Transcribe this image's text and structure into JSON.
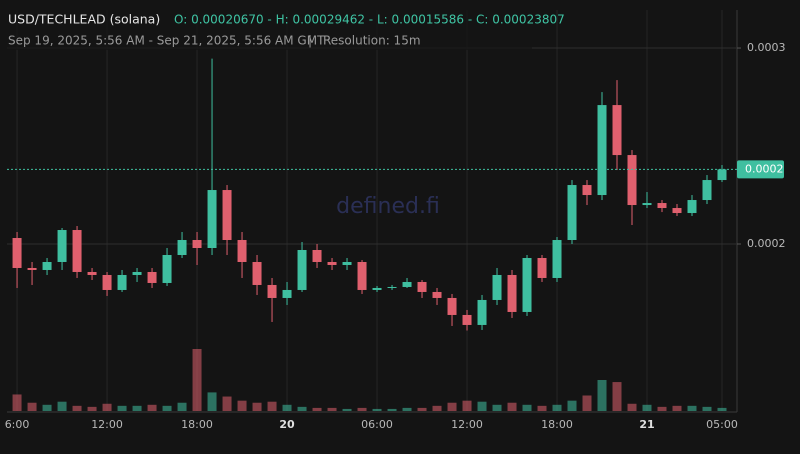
{
  "chart_data": {
    "type": "candlestick",
    "title": "USD/TECHLEAD (solana)",
    "ohlc_text": "O: 0.00020670 - H: 0.00029462 - L: 0.00015586 - C: 0.00023807",
    "subtitle": "Sep 19, 2025, 5:56 AM - Sep 21, 2025, 5:56 AM GMT",
    "separator": "|",
    "resolution": "Resolution: 15m",
    "watermark": "defined.fi",
    "up_color": "#3fbfa0",
    "down_color": "#e0606e",
    "grid": true,
    "xlim": [
      -0.67,
      48
    ],
    "xticks": [
      {
        "value": 0,
        "label": "6:00"
      },
      {
        "value": 6,
        "label": "12:00"
      },
      {
        "value": 12,
        "label": "18:00"
      },
      {
        "value": 18,
        "label": "20"
      },
      {
        "value": 24,
        "label": "06:00"
      },
      {
        "value": 30,
        "label": "12:00"
      },
      {
        "value": 36,
        "label": "18:00"
      },
      {
        "value": 42,
        "label": "21"
      },
      {
        "value": 47,
        "label": "05:00"
      }
    ],
    "ylim": [
      0.0001153,
      0.0003194
    ],
    "yticks": [
      0.0003,
      0.0002
    ],
    "last_price": {
      "value": 0.00023807,
      "label": "0.0002"
    },
    "x": [
      0,
      1,
      2,
      3,
      4,
      5,
      6,
      7,
      8,
      9,
      10,
      11,
      12,
      13,
      14,
      15,
      16,
      17,
      18,
      19,
      20,
      21,
      22,
      23,
      24,
      25,
      26,
      27,
      28,
      29,
      30,
      31,
      32,
      33,
      34,
      35,
      36,
      37,
      38,
      39,
      40,
      41,
      42,
      43,
      44,
      45,
      46,
      47
    ],
    "open": [
      0.00020306,
      0.00018776,
      0.00018674,
      0.00019082,
      0.00020714,
      0.00018572,
      0.00018419,
      0.00017654,
      0.00018419,
      0.00018572,
      0.00018011,
      0.00019439,
      0.00020204,
      0.00019796,
      0.00022754,
      0.00020204,
      0.00019082,
      0.00017909,
      0.00017246,
      0.00017654,
      0.00019694,
      0.00019082,
      0.00018929,
      0.00019082,
      0.00017654,
      0.00017756,
      0.00017807,
      0.00018062,
      0.00017552,
      0.00017246,
      0.00016379,
      0.00015869,
      0.00017144,
      0.00018419,
      0.00016532,
      0.00019286,
      0.00018266,
      0.00020204,
      0.00023009,
      0.00022499,
      0.00027089,
      0.00024539,
      0.00021989,
      0.00022091,
      0.00021836,
      0.00021581,
      0.00022244,
      0.00023264
    ],
    "high": [
      0.00020612,
      0.00019082,
      0.00019286,
      0.00020816,
      0.00020918,
      0.00018776,
      0.00018572,
      0.00018674,
      0.00018776,
      0.00018776,
      0.00019796,
      0.00020612,
      0.00020612,
      0.00029462,
      0.00023009,
      0.00020612,
      0.00019439,
      0.00018266,
      0.00018062,
      0.00020102,
      0.0002,
      0.00019286,
      0.00019286,
      0.00019184,
      0.00017858,
      0.00017909,
      0.00018266,
      0.00018164,
      0.00017756,
      0.0001745,
      0.00016634,
      0.00017399,
      0.00018776,
      0.00018674,
      0.00019439,
      0.00019439,
      0.00020357,
      0.00023264,
      0.00023264,
      0.00027752,
      0.00028364,
      0.00024794,
      0.00022652,
      0.00022244,
      0.0002204,
      0.00022499,
      0.00023519,
      0.00024029
    ],
    "low": [
      0.00017756,
      0.00017909,
      0.00018419,
      0.00018674,
      0.00018266,
      0.00018164,
      0.00017348,
      0.00017552,
      0.00018062,
      0.00017756,
      0.00017858,
      0.00019286,
      0.00018929,
      0.00019439,
      0.00019439,
      0.00018266,
      0.00017399,
      0.00016022,
      0.00016889,
      0.00017552,
      0.00018776,
      0.00018674,
      0.00018674,
      0.0001745,
      0.00017552,
      0.00017654,
      0.00017756,
      0.00017246,
      0.00016889,
      0.00015818,
      0.00015586,
      0.00015614,
      0.00016889,
      0.00016226,
      0.00016328,
      0.00018062,
      0.00018062,
      0.0002,
      0.00021989,
      0.00022244,
      0.00023774,
      0.00020969,
      0.00021836,
      0.0002163,
      0.00021428,
      0.00021428,
      0.0002204,
      0.00023162
    ],
    "close": [
      0.00018776,
      0.00018674,
      0.00019082,
      0.00020714,
      0.00018572,
      0.00018419,
      0.00017654,
      0.00018419,
      0.00018572,
      0.00018011,
      0.00019439,
      0.00020204,
      0.00019796,
      0.00022754,
      0.00020204,
      0.00019082,
      0.00017909,
      0.00017246,
      0.00017654,
      0.00019694,
      0.00019082,
      0.00018929,
      0.00019082,
      0.00017654,
      0.00017756,
      0.00017807,
      0.00018062,
      0.00017552,
      0.00017246,
      0.00016379,
      0.00015869,
      0.00017144,
      0.00018419,
      0.00016532,
      0.00019286,
      0.00018266,
      0.00020204,
      0.00023009,
      0.00022499,
      0.00027089,
      0.00024539,
      0.00021989,
      0.00022091,
      0.00021836,
      0.00021581,
      0.00022244,
      0.00023264,
      0.00023807
    ],
    "volume": [
      16,
      8,
      6,
      9,
      5,
      4,
      7,
      5,
      5,
      6,
      5,
      8,
      60,
      18,
      14,
      10,
      8,
      9,
      6,
      4,
      3,
      3,
      2,
      3,
      2,
      2,
      3,
      3,
      5,
      8,
      10,
      9,
      6,
      8,
      6,
      5,
      6,
      10,
      15,
      30,
      28,
      7,
      6,
      4,
      5,
      5,
      4,
      3
    ]
  }
}
